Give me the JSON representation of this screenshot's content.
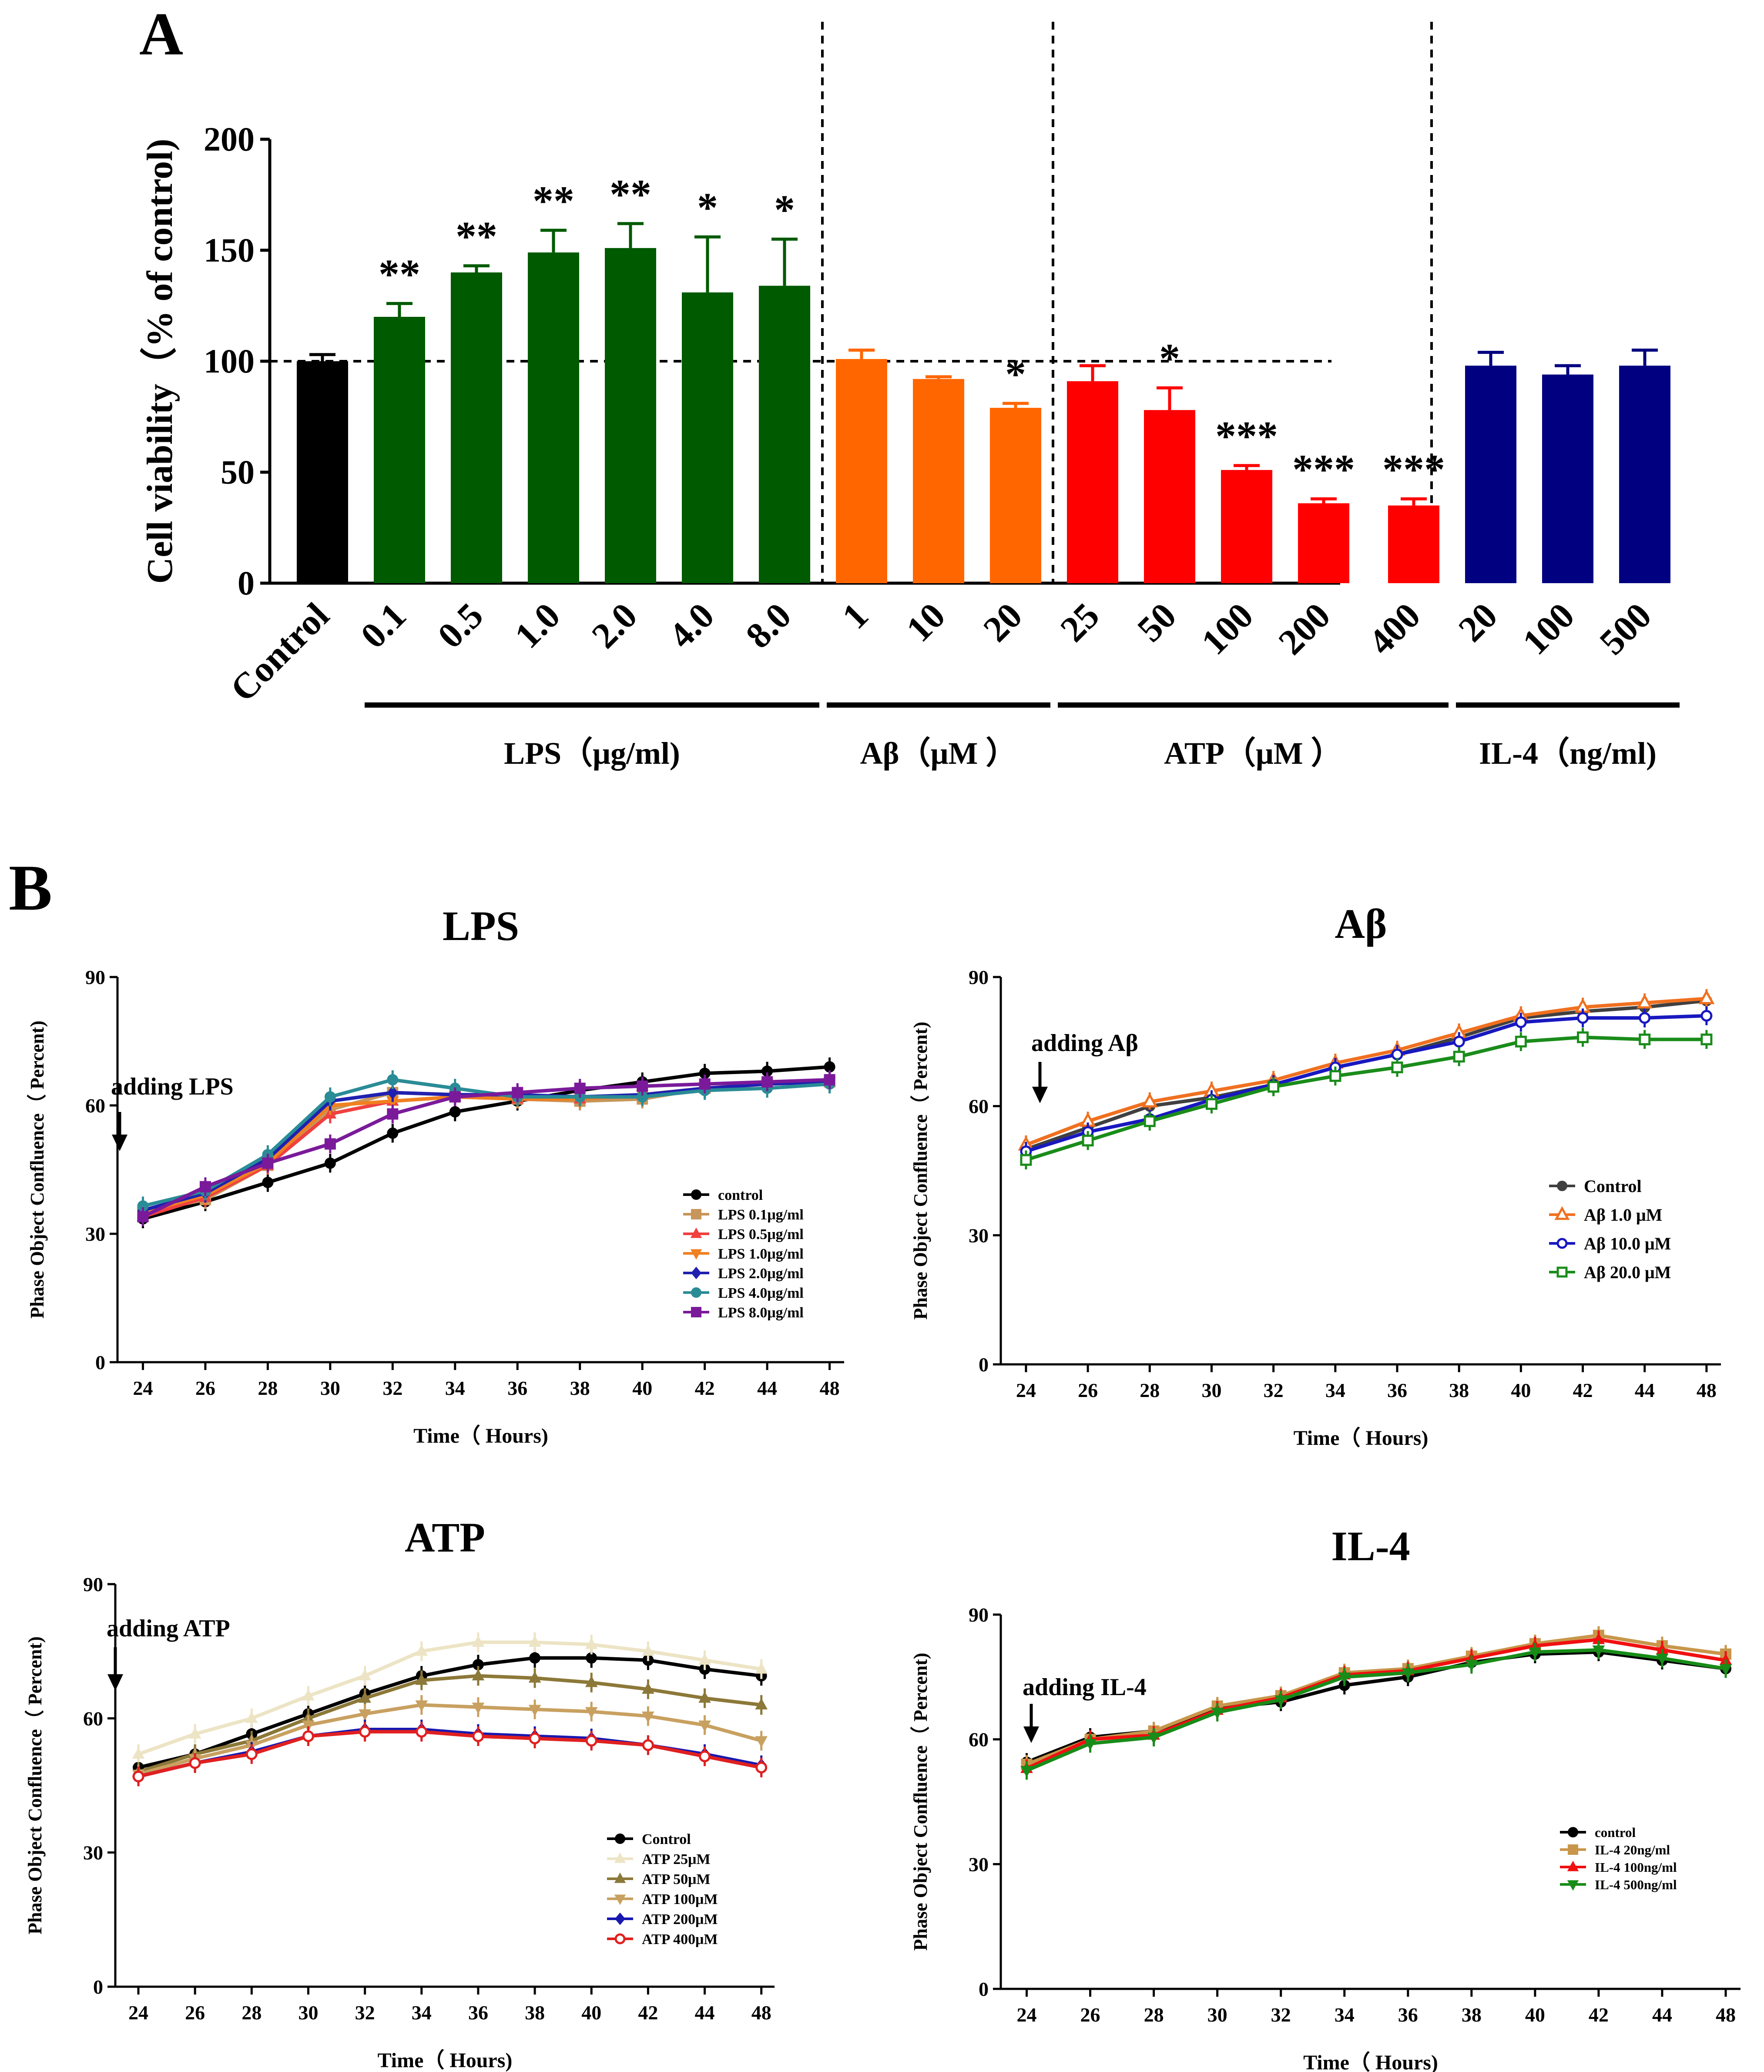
{
  "chart_data": [
    {
      "panel": "A",
      "type": "bar",
      "ylabel": "Cell viability（% of control)",
      "ylim": [
        0,
        200
      ],
      "yticks": [
        0,
        50,
        100,
        150,
        200
      ],
      "reference_line": 100,
      "groups": [
        {
          "name": "Control",
          "label": "",
          "color": "#000000",
          "categories": [
            "Control"
          ],
          "values": [
            100
          ],
          "errors": [
            3
          ],
          "stars": [
            ""
          ]
        },
        {
          "name": "LPS",
          "label": "LPS（μg/ml)",
          "color": "#005a00",
          "categories": [
            "0.1",
            "0.5",
            "1.0",
            "2.0",
            "4.0",
            "8.0"
          ],
          "values": [
            120,
            140,
            149,
            151,
            131,
            134
          ],
          "errors": [
            6,
            3,
            10,
            11,
            25,
            21
          ],
          "stars": [
            "**",
            "**",
            "**",
            "**",
            "*",
            "*"
          ]
        },
        {
          "name": "Aβ",
          "label": "Aβ（μM ）",
          "color": "#ff6600",
          "categories": [
            "1",
            "10",
            "20"
          ],
          "values": [
            101,
            92,
            79
          ],
          "errors": [
            4,
            1,
            2
          ],
          "stars": [
            "",
            "",
            "*"
          ]
        },
        {
          "name": "ATP",
          "label": "ATP（μM ）",
          "color": "#ff0000",
          "categories": [
            "25",
            "50",
            "100",
            "200",
            "400"
          ],
          "values": [
            91,
            78,
            51,
            36,
            35
          ],
          "errors": [
            7,
            10,
            2,
            2,
            3
          ],
          "stars": [
            "",
            "*",
            "***",
            "***",
            "***"
          ]
        },
        {
          "name": "IL-4",
          "label": "IL-4（ng/ml)",
          "color": "#000080",
          "categories": [
            "20",
            "100",
            "500"
          ],
          "values": [
            98,
            94,
            98
          ],
          "errors": [
            6,
            4,
            7
          ],
          "stars": [
            "",
            "",
            ""
          ]
        }
      ]
    },
    {
      "panel": "B",
      "type": "line",
      "title": "LPS",
      "annotation": "adding LPS",
      "xlabel": "Time（ Hours)",
      "ylabel": "Phase Object Confluence（ Percent)",
      "ylim": [
        0,
        90
      ],
      "yticks": [
        0,
        30,
        60,
        90
      ],
      "x": [
        24,
        26,
        28,
        30,
        32,
        34,
        36,
        38,
        40,
        42,
        44,
        48
      ],
      "series": [
        {
          "name": "control",
          "color": "#000000",
          "marker": "circle",
          "values": [
            33.5,
            37.5,
            42,
            46.5,
            53.5,
            58.5,
            61,
            63.5,
            65.5,
            67.5,
            68,
            69
          ]
        },
        {
          "name": "LPS 0.1μg/ml",
          "color": "#c8965a",
          "marker": "square",
          "values": [
            35,
            38,
            46,
            59,
            63,
            62.5,
            61.5,
            61,
            61.5,
            64,
            65,
            65.5
          ]
        },
        {
          "name": "LPS 0.5μg/ml",
          "color": "#f04040",
          "marker": "triangle",
          "values": [
            34,
            38.5,
            46,
            58,
            61,
            62,
            61.5,
            61.5,
            62.5,
            64,
            65,
            65.5
          ]
        },
        {
          "name": "LPS 1.0μg/ml",
          "color": "#f08020",
          "marker": "triangle-down",
          "values": [
            35,
            39,
            46.5,
            60,
            61,
            62,
            61.5,
            61.5,
            62.5,
            64,
            65,
            65.5
          ]
        },
        {
          "name": "LPS 2.0μg/ml",
          "color": "#2020b0",
          "marker": "diamond",
          "values": [
            35.5,
            39.5,
            47.5,
            61,
            63,
            62.5,
            62.5,
            62,
            62.5,
            64,
            65,
            65.5
          ]
        },
        {
          "name": "LPS 4.0μg/ml",
          "color": "#2a8c96",
          "marker": "circle",
          "values": [
            36.5,
            40,
            48.5,
            62,
            66,
            64,
            62,
            62,
            62,
            63.5,
            64,
            65
          ]
        },
        {
          "name": "LPS 8.0μg/ml",
          "color": "#7a1a9a",
          "marker": "square",
          "values": [
            34,
            41,
            46.5,
            51,
            58,
            62,
            63,
            64,
            64.5,
            65,
            65.5,
            66
          ]
        }
      ]
    },
    {
      "panel": "B",
      "type": "line",
      "title": "Aβ",
      "annotation": "adding Aβ",
      "xlabel": "Time（ Hours)",
      "ylabel": "Phase Object Confluence（ Percent)",
      "ylim": [
        0,
        90
      ],
      "yticks": [
        0,
        30,
        60,
        90
      ],
      "x": [
        24,
        26,
        28,
        30,
        32,
        34,
        36,
        38,
        40,
        42,
        44,
        48
      ],
      "series": [
        {
          "name": "Control",
          "color": "#404040",
          "marker": "circle",
          "values": [
            50,
            55,
            60,
            62,
            65,
            69,
            72,
            76,
            80.5,
            82,
            83,
            84.5
          ]
        },
        {
          "name": "Aβ 1.0 μM",
          "color": "#f07020",
          "marker": "open-triangle",
          "values": [
            51,
            56.5,
            61,
            63.5,
            66,
            70,
            73,
            77,
            81,
            83,
            84,
            85
          ]
        },
        {
          "name": "Aβ 10.0 μM",
          "color": "#1818c0",
          "marker": "open-circle",
          "values": [
            49.5,
            54,
            57,
            61.5,
            65,
            69,
            72,
            75,
            79.5,
            80.5,
            80.5,
            81
          ]
        },
        {
          "name": "Aβ 20.0 μM",
          "color": "#1a8c1a",
          "marker": "open-square",
          "values": [
            47.5,
            52,
            56.5,
            60.5,
            64.5,
            67,
            69,
            71.5,
            75,
            76,
            75.5,
            75.5
          ]
        }
      ]
    },
    {
      "panel": "B",
      "type": "line",
      "title": "ATP",
      "annotation": "adding ATP",
      "xlabel": "Time（ Hours)",
      "ylabel": "Phase Object Confluence（ Percent)",
      "ylim": [
        0,
        90
      ],
      "yticks": [
        0,
        30,
        60,
        90
      ],
      "x": [
        24,
        26,
        28,
        30,
        32,
        34,
        36,
        38,
        40,
        42,
        44,
        48
      ],
      "series": [
        {
          "name": "Control",
          "color": "#000000",
          "marker": "circle",
          "values": [
            49,
            52,
            56.5,
            61,
            65.5,
            69.5,
            72,
            73.5,
            73.5,
            73,
            71,
            69.5
          ]
        },
        {
          "name": "ATP 25μM",
          "color": "#ece4c4",
          "marker": "triangle",
          "values": [
            52,
            56.5,
            60,
            65,
            69.5,
            75,
            77,
            77,
            76.5,
            75,
            73,
            71
          ]
        },
        {
          "name": "ATP 50μM",
          "color": "#8c7838",
          "marker": "triangle",
          "values": [
            48,
            52,
            55,
            60,
            64.5,
            68.5,
            69.5,
            69,
            68,
            66.5,
            64.5,
            63
          ]
        },
        {
          "name": "ATP 100μM",
          "color": "#c8a060",
          "marker": "triangle-down",
          "values": [
            47.5,
            51,
            54,
            58.5,
            61,
            63,
            62.5,
            62,
            61.5,
            60.5,
            58.5,
            55
          ]
        },
        {
          "name": "ATP 200μM",
          "color": "#1818b0",
          "marker": "diamond",
          "values": [
            47,
            50,
            52.5,
            56,
            57.5,
            57.5,
            56.5,
            56,
            55.5,
            54,
            52,
            49.5
          ]
        },
        {
          "name": "ATP 400μM",
          "color": "#e02020",
          "marker": "open-circle",
          "values": [
            47,
            50,
            52,
            56,
            57,
            57,
            56,
            55.5,
            55,
            54,
            51.5,
            49
          ]
        }
      ]
    },
    {
      "panel": "B",
      "type": "line",
      "title": "IL-4",
      "annotation": "adding IL-4",
      "xlabel": "Time（ Hours)",
      "ylabel": "Phase Object Confluence（ Percent)",
      "ylim": [
        0,
        90
      ],
      "yticks": [
        0,
        30,
        60,
        90
      ],
      "x": [
        24,
        26,
        28,
        30,
        32,
        34,
        36,
        38,
        40,
        42,
        44,
        48
      ],
      "series": [
        {
          "name": "control",
          "color": "#000000",
          "marker": "circle",
          "values": [
            54.5,
            60.5,
            62,
            67.5,
            69,
            73,
            75,
            78.5,
            80.5,
            81,
            79,
            77
          ]
        },
        {
          "name": "IL-4 20ng/ml",
          "color": "#c8964a",
          "marker": "square",
          "values": [
            54,
            60,
            62,
            68,
            70.5,
            76,
            77,
            80,
            83,
            85,
            82.5,
            80.5
          ]
        },
        {
          "name": "IL-4 100ng/ml",
          "color": "#f01010",
          "marker": "triangle",
          "values": [
            53,
            60,
            61,
            67,
            70,
            75.5,
            76.5,
            79.5,
            82.5,
            84,
            81.5,
            79
          ]
        },
        {
          "name": "IL-4 500ng/ml",
          "color": "#188c18",
          "marker": "triangle-down",
          "values": [
            52.5,
            59,
            60.5,
            66.5,
            69.5,
            75,
            76,
            78,
            81,
            81.5,
            79.5,
            77
          ]
        }
      ]
    }
  ],
  "panel_labels": {
    "a": "A",
    "b": "B"
  }
}
